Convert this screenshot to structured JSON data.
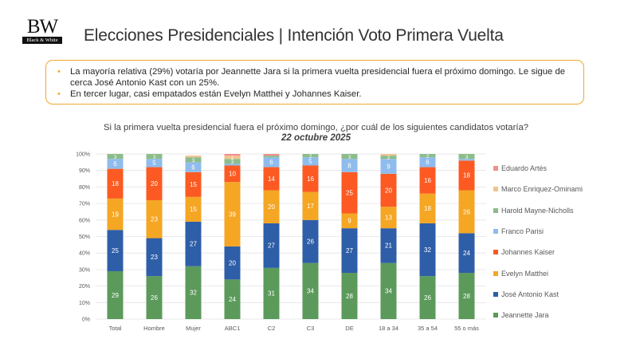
{
  "header": {
    "logo_text": "BW",
    "logo_subtext": "Black & White",
    "title": "Elecciones Presidenciales | Intención Voto Primera Vuelta"
  },
  "summary": {
    "bullets": [
      "La mayoría relativa (29%) votaría por Jeannette Jara si la primera vuelta presidencial fuera el próximo domingo. Le sigue de cerca José Antonio Kast con un 25%.",
      "En tercer lugar, casi empatados están Evelyn Matthei y Johannes Kaiser."
    ]
  },
  "chart_data": {
    "type": "bar",
    "stacked": true,
    "title": "Si la primera vuelta presidencial fuera el próximo domingo, ¿por cuál de los siguientes candidatos votaría?",
    "subtitle": "22 octubre 2025",
    "xlabel": "",
    "ylabel": "",
    "ylim": [
      0,
      100
    ],
    "yticks": [
      "0%",
      "10%",
      "20%",
      "30%",
      "40%",
      "50%",
      "60%",
      "70%",
      "80%",
      "90%",
      "100%"
    ],
    "grid": true,
    "legend_position": "right",
    "categories": [
      "Total",
      "Hombre",
      "Mujer",
      "ABC1",
      "C2",
      "C3",
      "DE",
      "18 a 34",
      "35 a 54",
      "55 o más"
    ],
    "series": [
      {
        "name": "Jeannette Jara",
        "color": "#5b9a5b",
        "values": [
          29,
          26,
          32,
          24,
          31,
          34,
          28,
          34,
          26,
          28
        ]
      },
      {
        "name": "José Antonio Kast",
        "color": "#2e5ea8",
        "values": [
          25,
          23,
          27,
          20,
          27,
          26,
          27,
          21,
          32,
          24
        ]
      },
      {
        "name": "Evelyn Matthei",
        "color": "#f5a623",
        "values": [
          19,
          23,
          15,
          39,
          20,
          17,
          9,
          13,
          18,
          26
        ]
      },
      {
        "name": "Johannes Kaiser",
        "color": "#fc5a22",
        "values": [
          18,
          20,
          15,
          10,
          14,
          16,
          25,
          20,
          16,
          18
        ]
      },
      {
        "name": "Franco Parisi",
        "color": "#8fbcec",
        "values": [
          6,
          5,
          6,
          1,
          6,
          5,
          8,
          9,
          6,
          1
        ]
      },
      {
        "name": "Harold Mayne-Nicholls",
        "color": "#8cbc8c",
        "values": [
          3,
          3,
          3,
          3,
          1,
          2,
          3,
          2,
          2,
          3
        ]
      },
      {
        "name": "Marco Enriquez-Ominami",
        "color": "#f2c38f",
        "values": [
          0,
          0,
          1,
          2,
          0,
          0,
          0,
          1,
          0,
          0
        ]
      },
      {
        "name": "Eduardo Artés",
        "color": "#f28e8e",
        "values": [
          0,
          0,
          0,
          1,
          1,
          0,
          0,
          0,
          0,
          0
        ]
      }
    ],
    "legend_order": [
      "Eduardo Artés",
      "Marco Enriquez-Ominami",
      "Harold Mayne-Nicholls",
      "Franco Parisi",
      "Johannes Kaiser",
      "Evelyn Matthei",
      "José Antonio Kast",
      "Jeannette Jara"
    ]
  }
}
